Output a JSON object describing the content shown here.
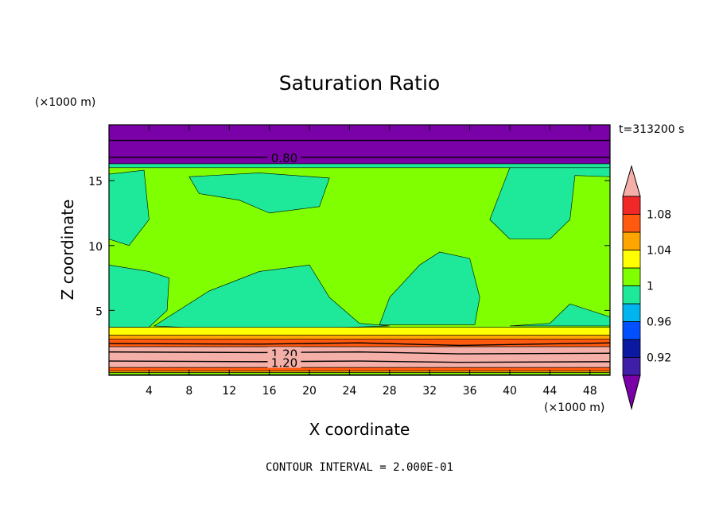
{
  "chart_data": {
    "type": "heatmap",
    "title": "Saturation Ratio",
    "xlabel": "X coordinate",
    "ylabel": "Z coordinate",
    "x_unit": "(×1000 m)",
    "y_unit": "(×1000 m)",
    "time_label": "t=313200 s",
    "footer": "CONTOUR INTERVAL = 2.000E-01",
    "xlim": [
      0,
      50
    ],
    "ylim": [
      0,
      19.3
    ],
    "x_ticks": [
      4,
      8,
      12,
      16,
      20,
      24,
      28,
      32,
      36,
      40,
      44,
      48
    ],
    "y_ticks": [
      5,
      10,
      15
    ],
    "contour_labels": [
      {
        "text": "0.80",
        "x": 17.5,
        "y": 16.8
      },
      {
        "text": "1.20",
        "x": 17.5,
        "y": 1.7
      },
      {
        "text": "1.20",
        "x": 17.5,
        "y": 1.0
      }
    ],
    "colorbar": {
      "levels": [
        0.9,
        0.92,
        0.94,
        0.96,
        0.98,
        1.0,
        1.02,
        1.04,
        1.06,
        1.08,
        1.1
      ],
      "tick_labels": [
        "0.92",
        "0.96",
        "1",
        "1.04",
        "1.08"
      ],
      "tick_values": [
        0.92,
        0.96,
        1.0,
        1.04,
        1.08
      ],
      "colors": [
        "#3f1fa8",
        "#0a19a0",
        "#0050ff",
        "#00b4f0",
        "#1ee89a",
        "#7fff00",
        "#ffff00",
        "#ffa500",
        "#ff5a10",
        "#f02828"
      ],
      "under_color": "#7a00a8",
      "over_color": "#f4b0a8"
    },
    "regions": [
      {
        "name": "upper-stratosphere",
        "value_class": "under",
        "polygon": [
          [
            0,
            19.3
          ],
          [
            50,
            19.3
          ],
          [
            50,
            16.3
          ],
          [
            0,
            16.3
          ]
        ]
      },
      {
        "name": "tropopause-band",
        "value_class": "0.98-1.00",
        "polygon": [
          [
            0,
            16.3
          ],
          [
            50,
            16.3
          ],
          [
            50,
            16.0
          ],
          [
            0,
            16.0
          ]
        ]
      },
      {
        "name": "free-troposphere",
        "value_class": "1.00-1.02",
        "polygon": [
          [
            0,
            16.0
          ],
          [
            50,
            16.0
          ],
          [
            50,
            3.5
          ],
          [
            0,
            3.5
          ]
        ]
      },
      {
        "name": "left-moist-patch",
        "value_class": "0.98-1.00",
        "polygon": [
          [
            0,
            15.5
          ],
          [
            3.5,
            15.8
          ],
          [
            4,
            12
          ],
          [
            2,
            10
          ],
          [
            0,
            10.5
          ]
        ]
      },
      {
        "name": "upper-moist-patch",
        "value_class": "0.98-1.00",
        "polygon": [
          [
            8,
            15.3
          ],
          [
            15,
            15.6
          ],
          [
            22,
            15.2
          ],
          [
            21,
            13
          ],
          [
            16,
            12.5
          ],
          [
            13,
            13.5
          ],
          [
            9,
            14
          ]
        ]
      },
      {
        "name": "left-lower-patch",
        "value_class": "0.98-1.00",
        "polygon": [
          [
            0,
            8.5
          ],
          [
            4,
            8
          ],
          [
            6,
            7.5
          ],
          [
            5.8,
            5
          ],
          [
            4,
            3.7
          ],
          [
            0,
            3.7
          ]
        ]
      },
      {
        "name": "center-lower-patch",
        "value_class": "0.98-1.00",
        "polygon": [
          [
            4.5,
            3.8
          ],
          [
            10,
            6.5
          ],
          [
            15,
            8
          ],
          [
            20,
            8.5
          ],
          [
            22,
            6
          ],
          [
            25,
            4
          ],
          [
            28,
            3.8
          ],
          [
            20,
            3.6
          ],
          [
            10,
            3.6
          ]
        ]
      },
      {
        "name": "central-dry-lobe",
        "value_class": "0.98-1.00",
        "polygon": [
          [
            27,
            3.9
          ],
          [
            28,
            6
          ],
          [
            31,
            8.5
          ],
          [
            33,
            9.5
          ],
          [
            36,
            9
          ],
          [
            37,
            6
          ],
          [
            36.5,
            3.9
          ]
        ]
      },
      {
        "name": "right-upper-patch",
        "value_class": "0.98-1.00",
        "polygon": [
          [
            40,
            16
          ],
          [
            50,
            16
          ],
          [
            50,
            15.3
          ],
          [
            46.5,
            15.4
          ],
          [
            46,
            12
          ],
          [
            44,
            10.5
          ],
          [
            40,
            10.5
          ],
          [
            38,
            12
          ]
        ]
      },
      {
        "name": "right-lower-patch",
        "value_class": "0.98-1.00",
        "polygon": [
          [
            40,
            3.8
          ],
          [
            44,
            4
          ],
          [
            46,
            5.5
          ],
          [
            48,
            5
          ],
          [
            50,
            4.5
          ],
          [
            50,
            3.8
          ]
        ]
      },
      {
        "name": "boundary-yellow",
        "value_class": "1.02-1.04",
        "polygon": [
          [
            0,
            3.7
          ],
          [
            50,
            3.7
          ],
          [
            50,
            3.1
          ],
          [
            0,
            3.1
          ]
        ]
      },
      {
        "name": "boundary-orange",
        "value_class": "1.04-1.06",
        "polygon": [
          [
            0,
            3.1
          ],
          [
            50,
            3.1
          ],
          [
            50,
            2.8
          ],
          [
            0,
            2.8
          ]
        ]
      },
      {
        "name": "boundary-red",
        "value_class": "1.06-1.08",
        "polygon": [
          [
            0,
            2.8
          ],
          [
            50,
            2.8
          ],
          [
            50,
            2.2
          ],
          [
            0,
            2.2
          ]
        ]
      },
      {
        "name": "boundary-pink",
        "value_class": "over",
        "polygon": [
          [
            0,
            2.2
          ],
          [
            50,
            2.2
          ],
          [
            50,
            0.6
          ],
          [
            0,
            0.6
          ]
        ]
      },
      {
        "name": "surface-red",
        "value_class": "1.06-1.08",
        "polygon": [
          [
            0,
            0.6
          ],
          [
            50,
            0.6
          ],
          [
            50,
            0.35
          ],
          [
            0,
            0.35
          ]
        ]
      },
      {
        "name": "surface-orange",
        "value_class": "1.04-1.06",
        "polygon": [
          [
            0,
            0.35
          ],
          [
            50,
            0.35
          ],
          [
            50,
            0.2
          ],
          [
            0,
            0.2
          ]
        ]
      },
      {
        "name": "surface-green",
        "value_class": "1.00-1.02",
        "polygon": [
          [
            0,
            0.2
          ],
          [
            50,
            0.2
          ],
          [
            50,
            0.05
          ],
          [
            0,
            0.05
          ]
        ]
      },
      {
        "name": "surface-cyan",
        "value_class": "0.96-0.98",
        "polygon": [
          [
            0,
            0.05
          ],
          [
            50,
            0.05
          ],
          [
            50,
            0
          ],
          [
            0,
            0
          ]
        ]
      }
    ],
    "contour_lines": [
      [
        [
          0,
          18.1
        ],
        [
          50,
          18.1
        ]
      ],
      [
        [
          0,
          16.8
        ],
        [
          50,
          16.8
        ]
      ],
      [
        [
          0,
          2.45
        ],
        [
          15,
          2.4
        ],
        [
          25,
          2.5
        ],
        [
          35,
          2.3
        ],
        [
          50,
          2.5
        ]
      ],
      [
        [
          0,
          1.8
        ],
        [
          15,
          1.75
        ],
        [
          25,
          1.8
        ],
        [
          35,
          1.65
        ],
        [
          50,
          1.7
        ]
      ],
      [
        [
          0,
          1.1
        ],
        [
          15,
          1.05
        ],
        [
          25,
          1.1
        ],
        [
          35,
          1.0
        ],
        [
          50,
          1.05
        ]
      ]
    ]
  }
}
